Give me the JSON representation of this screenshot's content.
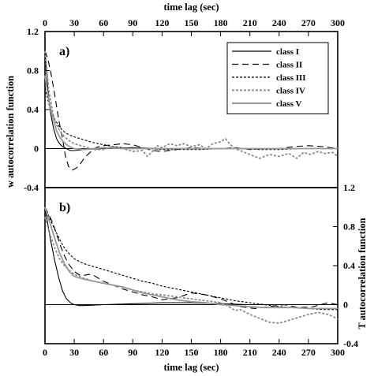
{
  "chart_data": [
    {
      "panel": "a)",
      "type": "line",
      "top_xlabel": "time lag (sec)",
      "xlabel": "",
      "ylabel": "w autocorrelation function",
      "ylabel_side": "left",
      "xlim": [
        0,
        300
      ],
      "ylim": [
        -0.4,
        1.2
      ],
      "xticks": [
        "0",
        "30",
        "60",
        "90",
        "120",
        "150",
        "180",
        "210",
        "240",
        "270",
        "300"
      ],
      "yticks": [
        "-0.4",
        "0",
        "0.4",
        "0.8",
        "1.2"
      ],
      "grid": false,
      "legend_position": "top-right",
      "series": [
        {
          "name": "class I",
          "color": "#000000",
          "dash": "none",
          "x": [
            0,
            3,
            6,
            9,
            12,
            15,
            18,
            22,
            26,
            30,
            40,
            60,
            90,
            120,
            180,
            240,
            300
          ],
          "y": [
            1.0,
            0.6,
            0.35,
            0.2,
            0.1,
            0.05,
            0.02,
            0.0,
            -0.02,
            -0.02,
            -0.01,
            0.0,
            0.01,
            0.0,
            0.0,
            0.0,
            0.0
          ]
        },
        {
          "name": "class II",
          "color": "#000000",
          "dash": "8,5",
          "x": [
            0,
            3,
            6,
            10,
            14,
            18,
            21,
            24,
            28,
            32,
            36,
            40,
            45,
            50,
            55,
            60,
            70,
            80,
            90,
            100,
            110,
            120,
            135,
            150,
            165,
            180,
            195,
            210,
            225,
            240,
            255,
            270,
            285,
            300
          ],
          "y": [
            1.0,
            0.92,
            0.78,
            0.55,
            0.3,
            0.1,
            -0.08,
            -0.18,
            -0.22,
            -0.2,
            -0.16,
            -0.1,
            -0.05,
            0.0,
            0.02,
            0.03,
            0.04,
            0.05,
            0.04,
            0.01,
            -0.02,
            -0.03,
            -0.01,
            0.01,
            0.0,
            0.0,
            0.01,
            -0.01,
            0.0,
            0.0,
            0.02,
            0.03,
            0.02,
            0.0
          ]
        },
        {
          "name": "class III",
          "color": "#000000",
          "dash": "3,2",
          "x": [
            0,
            5,
            10,
            15,
            20,
            25,
            30,
            40,
            50,
            60,
            70,
            80,
            90,
            105,
            120,
            140,
            160,
            180,
            200,
            220,
            240,
            260,
            280,
            300
          ],
          "y": [
            0.62,
            0.42,
            0.3,
            0.22,
            0.17,
            0.14,
            0.12,
            0.09,
            0.06,
            0.04,
            0.02,
            0.01,
            0.0,
            0.0,
            -0.01,
            -0.01,
            -0.01,
            0.0,
            0.0,
            -0.01,
            -0.01,
            0.0,
            0.0,
            0.0
          ]
        },
        {
          "name": "class IV",
          "color": "#8c8c8c",
          "dash": "3,2",
          "x": [
            0,
            4,
            8,
            12,
            16,
            20,
            25,
            30,
            40,
            50,
            60,
            70,
            80,
            90,
            100,
            105,
            110,
            115,
            120,
            128,
            135,
            142,
            150,
            158,
            165,
            172,
            180,
            185,
            190,
            195,
            200,
            210,
            220,
            230,
            240,
            250,
            258,
            265,
            272,
            280,
            287,
            295,
            300
          ],
          "y": [
            1.0,
            0.6,
            0.36,
            0.24,
            0.17,
            0.12,
            0.08,
            0.05,
            0.02,
            -0.01,
            -0.01,
            0.02,
            0.0,
            -0.03,
            -0.02,
            -0.08,
            -0.03,
            0.03,
            0.01,
            0.05,
            0.03,
            0.05,
            0.02,
            0.04,
            0.0,
            0.05,
            0.07,
            0.1,
            0.04,
            0.0,
            -0.02,
            -0.06,
            -0.1,
            -0.06,
            -0.08,
            -0.05,
            -0.1,
            -0.04,
            -0.06,
            -0.03,
            -0.05,
            -0.04,
            -0.08
          ]
        },
        {
          "name": "class V",
          "color": "#999999",
          "dash": "none",
          "x": [
            0,
            3,
            6,
            9,
            12,
            15,
            18,
            21,
            25,
            30,
            40,
            50,
            60,
            80,
            100,
            120,
            150,
            180,
            210,
            240,
            270,
            300
          ],
          "y": [
            0.75,
            0.55,
            0.4,
            0.28,
            0.18,
            0.12,
            0.08,
            0.05,
            0.02,
            0.0,
            -0.01,
            0.0,
            0.01,
            0.0,
            0.0,
            0.0,
            0.0,
            0.0,
            0.0,
            0.0,
            0.0,
            0.0
          ]
        }
      ]
    },
    {
      "panel": "b)",
      "type": "line",
      "xlabel": "time lag (sec)",
      "ylabel": "T autocorrelation function",
      "ylabel_side": "right",
      "xlim": [
        0,
        300
      ],
      "ylim": [
        -0.4,
        1.2
      ],
      "xticks": [
        "0",
        "30",
        "60",
        "90",
        "120",
        "150",
        "180",
        "210",
        "240",
        "270",
        "300"
      ],
      "yticks": [
        "-0.4",
        "0",
        "0.4",
        "0.8",
        "1.2"
      ],
      "grid": false,
      "series": [
        {
          "name": "class I",
          "color": "#000000",
          "dash": "none",
          "x": [
            0,
            3,
            6,
            10,
            14,
            18,
            22,
            26,
            30,
            35,
            40,
            60,
            90,
            120,
            150,
            180,
            210,
            240,
            270,
            300
          ],
          "y": [
            1.0,
            0.82,
            0.65,
            0.45,
            0.28,
            0.14,
            0.06,
            0.02,
            0.0,
            -0.01,
            -0.01,
            0.0,
            0.01,
            0.02,
            0.02,
            0.01,
            0.0,
            0.0,
            0.0,
            0.0
          ]
        },
        {
          "name": "class II",
          "color": "#000000",
          "dash": "8,5",
          "x": [
            0,
            4,
            8,
            12,
            16,
            20,
            24,
            30,
            36,
            40,
            45,
            50,
            55,
            60,
            70,
            80,
            90,
            100,
            110,
            120,
            135,
            150,
            165,
            180,
            190,
            200,
            215,
            230,
            245,
            260,
            275,
            290,
            300
          ],
          "y": [
            1.0,
            0.92,
            0.84,
            0.72,
            0.6,
            0.5,
            0.42,
            0.34,
            0.3,
            0.3,
            0.31,
            0.3,
            0.27,
            0.24,
            0.2,
            0.16,
            0.13,
            0.1,
            0.08,
            0.05,
            0.07,
            0.12,
            0.1,
            0.06,
            0.02,
            -0.02,
            -0.04,
            -0.02,
            0.0,
            -0.03,
            -0.02,
            0.02,
            0.0
          ]
        },
        {
          "name": "class III",
          "color": "#000000",
          "dash": "3,2",
          "x": [
            0,
            5,
            10,
            15,
            20,
            25,
            30,
            40,
            50,
            60,
            70,
            80,
            90,
            100,
            110,
            120,
            135,
            150,
            165,
            180,
            195,
            210,
            225,
            240,
            255,
            270,
            285,
            300
          ],
          "y": [
            1.0,
            0.88,
            0.77,
            0.67,
            0.58,
            0.52,
            0.47,
            0.42,
            0.39,
            0.36,
            0.33,
            0.3,
            0.27,
            0.24,
            0.22,
            0.19,
            0.16,
            0.13,
            0.1,
            0.07,
            0.04,
            0.02,
            0.0,
            -0.02,
            -0.03,
            -0.04,
            -0.05,
            -0.05
          ]
        },
        {
          "name": "class IV",
          "color": "#8c8c8c",
          "dash": "3,2",
          "x": [
            0,
            5,
            10,
            15,
            20,
            25,
            30,
            40,
            50,
            60,
            70,
            80,
            90,
            100,
            110,
            120,
            135,
            150,
            165,
            180,
            185,
            190,
            195,
            200,
            210,
            220,
            230,
            240,
            250,
            260,
            270,
            280,
            290,
            295,
            300
          ],
          "y": [
            0.9,
            0.72,
            0.58,
            0.47,
            0.4,
            0.35,
            0.31,
            0.27,
            0.24,
            0.22,
            0.2,
            0.18,
            0.15,
            0.13,
            0.11,
            0.1,
            0.08,
            0.06,
            0.04,
            0.02,
            0.0,
            -0.03,
            -0.06,
            -0.05,
            -0.1,
            -0.14,
            -0.18,
            -0.19,
            -0.16,
            -0.13,
            -0.1,
            -0.08,
            -0.1,
            -0.12,
            -0.15
          ]
        },
        {
          "name": "class V",
          "color": "#999999",
          "dash": "none",
          "x": [
            0,
            5,
            10,
            15,
            20,
            25,
            30,
            40,
            50,
            60,
            70,
            80,
            90,
            100,
            110,
            120,
            135,
            150,
            165,
            180,
            195,
            210,
            225,
            240,
            255,
            270,
            285,
            300
          ],
          "y": [
            1.0,
            0.84,
            0.68,
            0.53,
            0.42,
            0.34,
            0.29,
            0.26,
            0.24,
            0.22,
            0.2,
            0.18,
            0.15,
            0.12,
            0.1,
            0.08,
            0.05,
            0.03,
            0.02,
            0.0,
            -0.01,
            -0.02,
            -0.03,
            -0.03,
            -0.03,
            -0.04,
            -0.04,
            -0.04
          ]
        }
      ]
    }
  ]
}
